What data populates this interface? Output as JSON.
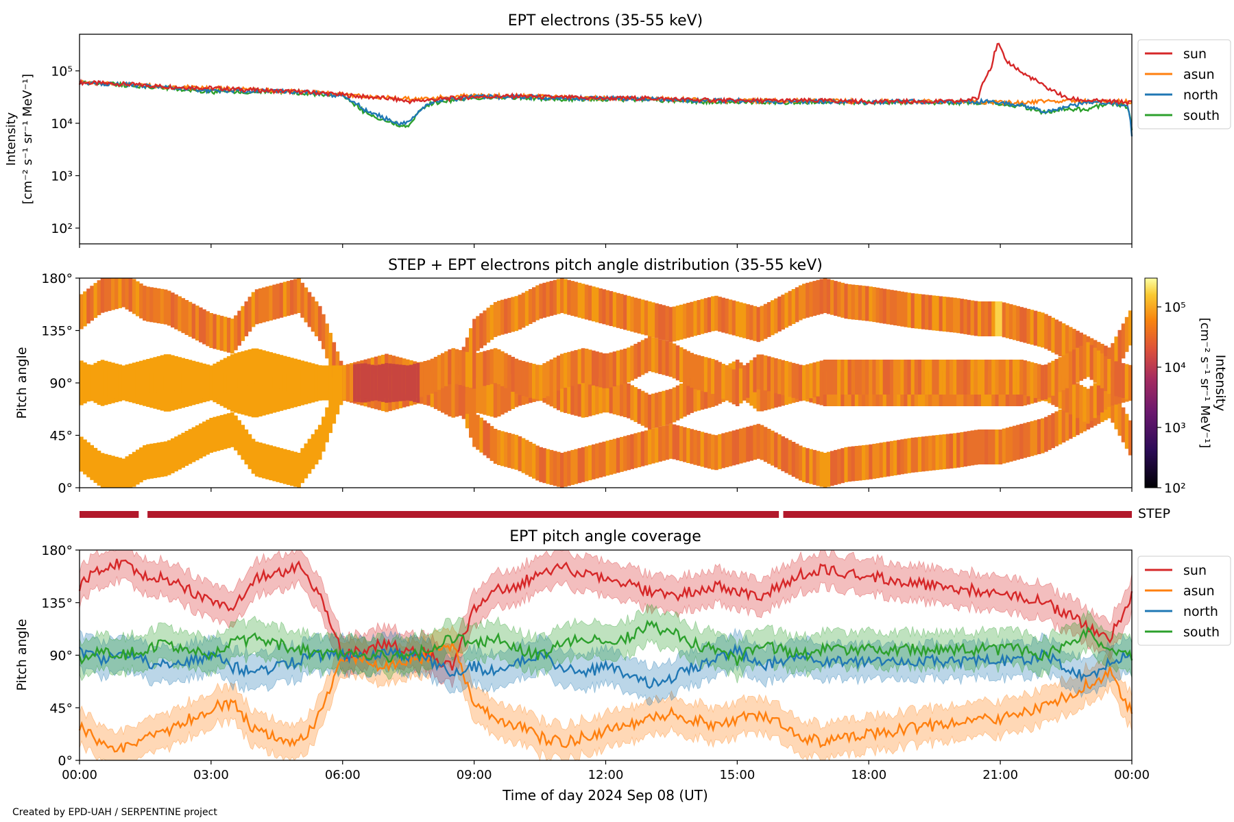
{
  "footer": "Created by EPD-UAH / SERPENTINE project",
  "xaxis": {
    "label": "Time of day 2024 Sep 08 (UT)",
    "ticks": [
      "00:00",
      "03:00",
      "06:00",
      "09:00",
      "12:00",
      "15:00",
      "18:00",
      "21:00",
      "00:00"
    ],
    "range_hours": [
      0,
      24
    ]
  },
  "colors": {
    "sun": "#d62728",
    "asun": "#ff7f0e",
    "north": "#1f77b4",
    "south": "#2ca02c",
    "step_bar": "#b2182b"
  },
  "chart_data": [
    {
      "type": "line",
      "title": "EPT electrons (35-55 keV)",
      "ylabel_line1": "Intensity",
      "ylabel_line2": "[cm⁻² s⁻¹ sr⁻¹ MeV⁻¹]",
      "yscale": "log",
      "ylim": [
        50,
        500000
      ],
      "ytick_labels": [
        "10²",
        "10³",
        "10⁴",
        "10⁵"
      ],
      "yticks": [
        100,
        1000,
        10000,
        100000
      ],
      "legend": "top-right outside",
      "x_hours": [
        0,
        1,
        2,
        3,
        4,
        5,
        5.5,
        6,
        6.5,
        7,
        7.3,
        7.5,
        8,
        9,
        10,
        11,
        12,
        13,
        14,
        15,
        16,
        17,
        18,
        19,
        20,
        20.5,
        20.8,
        20.95,
        21.1,
        21.5,
        22,
        22.5,
        23,
        23.5,
        23.9,
        24
      ],
      "series": [
        {
          "name": "sun",
          "values": [
            60000,
            56000,
            50000,
            47000,
            43000,
            40000,
            38000,
            35000,
            32000,
            30000,
            28000,
            26000,
            28000,
            32000,
            33000,
            31000,
            30000,
            30000,
            28000,
            27000,
            27000,
            27000,
            26000,
            26000,
            26000,
            30000,
            120000,
            330000,
            160000,
            90000,
            50000,
            30000,
            27000,
            26000,
            25000,
            25000
          ]
        },
        {
          "name": "asun",
          "values": [
            60000,
            56000,
            50000,
            47000,
            43000,
            40000,
            38000,
            35000,
            33000,
            31000,
            30000,
            29000,
            30000,
            34000,
            33000,
            31000,
            30000,
            30000,
            28000,
            27000,
            27000,
            27000,
            26000,
            26000,
            26000,
            26000,
            25000,
            25000,
            25000,
            25000,
            26000,
            27000,
            26000,
            26000,
            26000,
            26000
          ]
        },
        {
          "name": "north",
          "values": [
            60000,
            55000,
            48000,
            42000,
            42000,
            40000,
            37000,
            33000,
            18000,
            12000,
            10000,
            10000,
            25000,
            32000,
            32000,
            30000,
            30000,
            29000,
            27000,
            27000,
            26000,
            26000,
            25000,
            26000,
            26000,
            26000,
            26000,
            25000,
            24000,
            22000,
            17000,
            20000,
            26000,
            25000,
            22000,
            6000
          ]
        },
        {
          "name": "south",
          "values": [
            60000,
            54000,
            47000,
            40000,
            40000,
            38000,
            36000,
            32000,
            16000,
            11000,
            9000,
            9000,
            24000,
            31000,
            31000,
            29000,
            29000,
            28000,
            26000,
            26000,
            25000,
            25000,
            25000,
            25000,
            25000,
            25000,
            25000,
            24000,
            23000,
            21000,
            16000,
            19000,
            18000,
            24000,
            21000,
            7000
          ]
        }
      ]
    },
    {
      "type": "heatmap",
      "title": "STEP + EPT electrons pitch angle distribution (35-55 keV)",
      "ylabel": "Pitch angle",
      "ylim": [
        0,
        180
      ],
      "ytick_labels": [
        "0°",
        "45°",
        "90°",
        "135°",
        "180°"
      ],
      "yticks": [
        0,
        45,
        90,
        135,
        180
      ],
      "colorbar": {
        "label_line1": "Intensity",
        "label_line2": "[cm⁻² s⁻¹ sr⁻¹ MeV⁻¹]",
        "scale": "log",
        "range": [
          100,
          300000
        ],
        "tick_labels": [
          "10²",
          "10³",
          "10⁴",
          "10⁵"
        ],
        "ticks": [
          100,
          1000,
          10000,
          100000
        ]
      }
    },
    {
      "type": "bar",
      "label": "STEP",
      "segments_hours": [
        [
          0,
          1.35
        ],
        [
          1.55,
          15.95
        ],
        [
          16.05,
          24
        ]
      ]
    },
    {
      "type": "area",
      "title": "EPT pitch angle coverage",
      "ylabel": "Pitch angle",
      "ylim": [
        0,
        180
      ],
      "ytick_labels": [
        "0°",
        "45°",
        "90°",
        "135°",
        "180°"
      ],
      "yticks": [
        0,
        45,
        90,
        135,
        180
      ],
      "legend": "top-right outside",
      "x_hours": [
        0,
        0.5,
        1,
        1.5,
        2,
        2.5,
        3,
        3.5,
        4,
        4.5,
        5,
        5.5,
        6,
        6.5,
        7,
        7.5,
        8,
        8.5,
        9,
        9.5,
        10,
        10.5,
        11,
        11.5,
        12,
        12.5,
        13,
        13.5,
        14,
        14.5,
        15,
        15.5,
        16,
        16.5,
        17,
        17.5,
        18,
        18.5,
        19,
        19.5,
        20,
        20.5,
        21,
        21.5,
        22,
        22.5,
        23,
        23.5,
        24
      ],
      "halfwidth_deg": 15,
      "series": [
        {
          "name": "sun",
          "values": [
            150,
            165,
            170,
            158,
            155,
            145,
            135,
            130,
            155,
            160,
            165,
            140,
            90,
            95,
            100,
            95,
            90,
            80,
            130,
            145,
            150,
            160,
            165,
            160,
            155,
            150,
            145,
            140,
            145,
            150,
            145,
            140,
            150,
            160,
            165,
            160,
            158,
            155,
            152,
            150,
            148,
            145,
            145,
            140,
            135,
            125,
            115,
            105,
            140
          ]
        },
        {
          "name": "asun",
          "values": [
            30,
            15,
            10,
            22,
            25,
            35,
            45,
            50,
            25,
            20,
            15,
            40,
            90,
            85,
            80,
            85,
            90,
            100,
            50,
            35,
            30,
            20,
            15,
            20,
            25,
            30,
            35,
            40,
            35,
            30,
            35,
            40,
            30,
            20,
            15,
            20,
            22,
            25,
            28,
            30,
            32,
            35,
            35,
            40,
            45,
            55,
            65,
            75,
            40
          ]
        },
        {
          "name": "north",
          "values": [
            95,
            85,
            90,
            85,
            80,
            85,
            90,
            80,
            75,
            80,
            85,
            90,
            90,
            88,
            92,
            90,
            85,
            75,
            80,
            75,
            85,
            90,
            80,
            75,
            80,
            75,
            65,
            70,
            80,
            85,
            95,
            80,
            85,
            90,
            85,
            85,
            85,
            85,
            85,
            85,
            85,
            85,
            85,
            85,
            90,
            80,
            70,
            85,
            90
          ]
        },
        {
          "name": "south",
          "values": [
            85,
            95,
            90,
            95,
            100,
            95,
            90,
            100,
            105,
            100,
            95,
            90,
            90,
            92,
            88,
            90,
            95,
            105,
            100,
            105,
            95,
            90,
            100,
            105,
            100,
            105,
            115,
            110,
            100,
            95,
            85,
            100,
            95,
            90,
            95,
            95,
            95,
            95,
            95,
            95,
            95,
            95,
            95,
            95,
            90,
            100,
            110,
            95,
            90
          ]
        }
      ]
    }
  ]
}
